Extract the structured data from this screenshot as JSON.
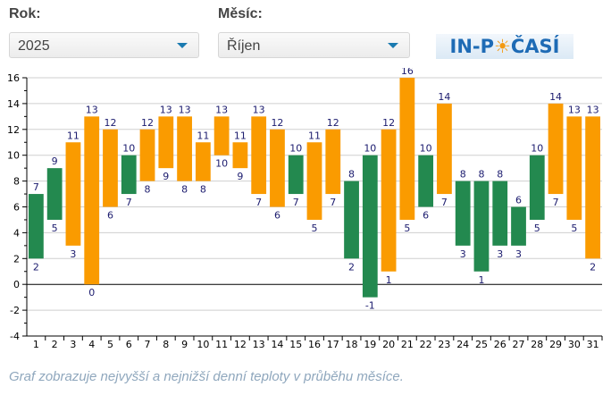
{
  "controls": {
    "year_label": "Rok:",
    "year_value": "2025",
    "month_label": "Měsíc:",
    "month_value": "Říjen"
  },
  "logo": {
    "text": "IN-POČASÍ"
  },
  "caption": "Graf zobrazuje nejvyšší a nejnižší denní teploty v průběhu měsíce.",
  "colors": {
    "green": "#23894f",
    "orange": "#fa9b00",
    "label": "#1b1b6e"
  },
  "chart_data": {
    "type": "bar",
    "subtype": "floating-range",
    "title": "",
    "xlabel": "",
    "ylabel": "",
    "ylim": [
      -4,
      16
    ],
    "yticks": [
      -4,
      -2,
      0,
      2,
      4,
      6,
      8,
      10,
      12,
      14,
      16
    ],
    "grid": true,
    "categories": [
      "1",
      "2",
      "3",
      "4",
      "5",
      "6",
      "7",
      "8",
      "9",
      "10",
      "11",
      "12",
      "13",
      "14",
      "15",
      "16",
      "17",
      "18",
      "19",
      "20",
      "21",
      "22",
      "23",
      "24",
      "25",
      "26",
      "27",
      "28",
      "29",
      "30",
      "31"
    ],
    "series": [
      {
        "name": "min",
        "values": [
          2,
          5,
          3,
          0,
          6,
          7,
          8,
          9,
          8,
          8,
          10,
          9,
          7,
          6,
          7,
          5,
          7,
          2,
          -1,
          1,
          5,
          6,
          7,
          3,
          1,
          3,
          3,
          5,
          7,
          5,
          2
        ]
      },
      {
        "name": "max",
        "values": [
          7,
          9,
          11,
          13,
          12,
          10,
          12,
          13,
          13,
          11,
          13,
          11,
          13,
          12,
          10,
          11,
          12,
          8,
          10,
          12,
          16,
          10,
          14,
          8,
          8,
          8,
          6,
          10,
          14,
          13,
          13
        ]
      }
    ],
    "bar_colors": [
      "green",
      "green",
      "orange",
      "orange",
      "orange",
      "green",
      "orange",
      "orange",
      "orange",
      "orange",
      "orange",
      "orange",
      "orange",
      "orange",
      "green",
      "orange",
      "orange",
      "green",
      "green",
      "orange",
      "orange",
      "green",
      "orange",
      "green",
      "green",
      "green",
      "green",
      "green",
      "orange",
      "orange",
      "orange"
    ]
  }
}
